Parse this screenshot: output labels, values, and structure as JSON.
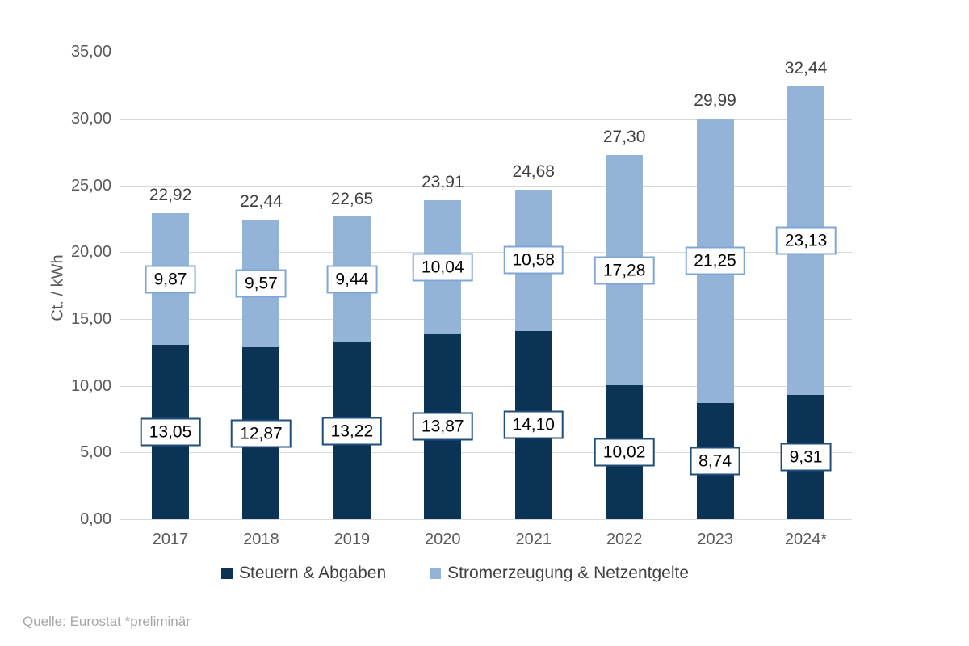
{
  "chart_data": {
    "type": "bar",
    "stacked": true,
    "title": "",
    "ylabel": "Ct. / kWh",
    "xlabel": "",
    "ylim": [
      0,
      35
    ],
    "ytick_step": 5,
    "ytick_labels": [
      "0,00",
      "5,00",
      "10,00",
      "15,00",
      "20,00",
      "25,00",
      "30,00",
      "35,00"
    ],
    "grid": true,
    "legend_position": "bottom",
    "categories": [
      "2017",
      "2018",
      "2019",
      "2020",
      "2021",
      "2022",
      "2023",
      "2024*"
    ],
    "series": [
      {
        "name": "Steuern & Abgaben",
        "color": "#0b3355",
        "values": [
          13.05,
          12.87,
          13.22,
          13.87,
          14.1,
          10.02,
          8.74,
          9.31
        ],
        "labels": [
          "13,05",
          "12,87",
          "13,22",
          "13,87",
          "14,10",
          "10,02",
          "8,74",
          "9,31"
        ]
      },
      {
        "name": "Stromerzeugung & Netzentgelte",
        "color": "#94b3d9",
        "values": [
          9.87,
          9.57,
          9.44,
          10.04,
          10.58,
          17.28,
          21.25,
          23.13
        ],
        "labels": [
          "9,87",
          "9,57",
          "9,44",
          "10,04",
          "10,58",
          "17,28",
          "21,25",
          "23,13"
        ]
      }
    ],
    "totals": [
      22.92,
      22.44,
      22.65,
      23.91,
      24.68,
      27.3,
      29.99,
      32.44
    ],
    "total_labels": [
      "22,92",
      "22,44",
      "22,65",
      "23,91",
      "24,68",
      "27,30",
      "29,99",
      "32,44"
    ]
  },
  "footer": {
    "source": "Quelle: Eurostat  *preliminär"
  },
  "colors": {
    "dark_series": "#0b3355",
    "light_series": "#94b3d9",
    "dark_box_border": "#1f4e79",
    "light_box_border": "#7fa7d6",
    "gridline": "#d9d9d9",
    "axis_text": "#595959",
    "total_text": "#404040",
    "legend_text": "#404040",
    "footer_text": "#a6a6a6"
  }
}
